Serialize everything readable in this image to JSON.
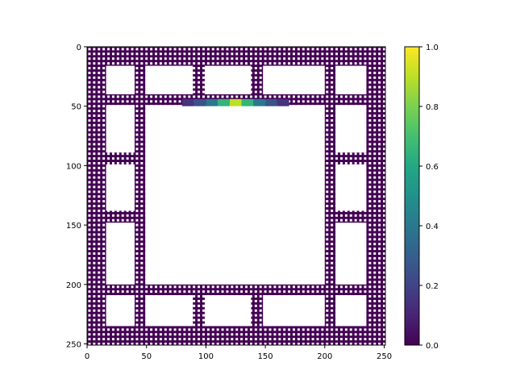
{
  "chart_data": {
    "type": "heatmap",
    "title": "",
    "xlabel": "",
    "ylabel": "",
    "description_shape": "sierpinski-carpet-like lattice image, 251x251 pixels, mostly value 0 with a bright hotspot",
    "xlim": [
      0,
      251
    ],
    "ylim": [
      251,
      0
    ],
    "x_ticks": [
      0,
      50,
      100,
      150,
      200,
      250
    ],
    "y_ticks": [
      0,
      50,
      100,
      150,
      200,
      250
    ],
    "colormap": "viridis",
    "colorbar": {
      "range": [
        0.0,
        1.0
      ],
      "ticks": [
        "0.0",
        "0.2",
        "0.4",
        "0.6",
        "0.8",
        "1.0"
      ],
      "tick_values": [
        0.0,
        0.2,
        0.4,
        0.6,
        0.8,
        1.0
      ]
    },
    "hotspot": {
      "center": [
        125,
        47
      ],
      "peak_value": 0.9,
      "profile": [
        {
          "x": 85,
          "value": 0.15
        },
        {
          "x": 95,
          "value": 0.25
        },
        {
          "x": 105,
          "value": 0.4
        },
        {
          "x": 115,
          "value": 0.65
        },
        {
          "x": 125,
          "value": 0.9
        },
        {
          "x": 135,
          "value": 0.65
        },
        {
          "x": 145,
          "value": 0.4
        },
        {
          "x": 155,
          "value": 0.25
        },
        {
          "x": 165,
          "value": 0.15
        }
      ]
    },
    "grid": false,
    "legend": "none"
  }
}
